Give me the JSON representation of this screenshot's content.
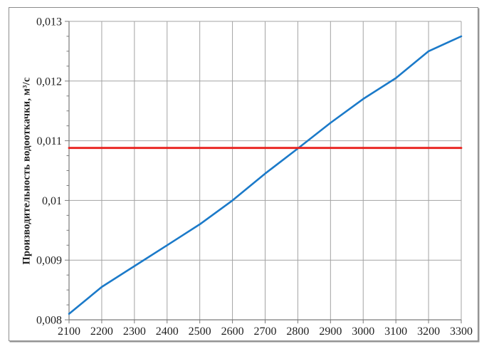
{
  "chart_data": {
    "type": "line",
    "title": "",
    "xlabel": "",
    "ylabel": "Производительность водооткачки, м³/с",
    "xlim": [
      2100,
      3300
    ],
    "ylim": [
      0.008,
      0.013
    ],
    "x_ticks": {
      "values": [
        2100,
        2200,
        2300,
        2400,
        2500,
        2600,
        2700,
        2800,
        2900,
        3000,
        3100,
        3200,
        3300
      ],
      "labels": [
        "2100",
        "2200",
        "2300",
        "2400",
        "2500",
        "2600",
        "2700",
        "2800",
        "2900",
        "3000",
        "3100",
        "3200",
        "3300"
      ]
    },
    "y_ticks": {
      "values": [
        0.008,
        0.009,
        0.01,
        0.011,
        0.012,
        0.013
      ],
      "labels": [
        "0,008",
        "0,009",
        "0,01",
        "0,011",
        "0,012",
        "0,013"
      ]
    },
    "y_minor_divisions": 4,
    "grid": "major-both",
    "legend": "none",
    "colors": {
      "grid": "#a3a3a3",
      "axis": "#7a7a7a",
      "tick_text": "#1f1f1f",
      "frame_border": "#8c8c8c",
      "blue_line": "#1b7ac9",
      "red_line": "#e9211d"
    },
    "series": [
      {
        "name": "blue-curve",
        "color": "#1b7ac9",
        "width": 2.6,
        "x": [
          2100,
          2200,
          2300,
          2400,
          2500,
          2600,
          2700,
          2800,
          2900,
          3000,
          3100,
          3200,
          3300
        ],
        "y": [
          0.0081,
          0.00855,
          0.0089,
          0.00925,
          0.0096,
          0.01,
          0.01045,
          0.01087,
          0.0113,
          0.0117,
          0.01205,
          0.0125,
          0.01275
        ]
      },
      {
        "name": "red-constant-line",
        "color": "#e9211d",
        "width": 2.8,
        "x": [
          2100,
          3300
        ],
        "y": [
          0.01088,
          0.01088
        ]
      }
    ]
  }
}
